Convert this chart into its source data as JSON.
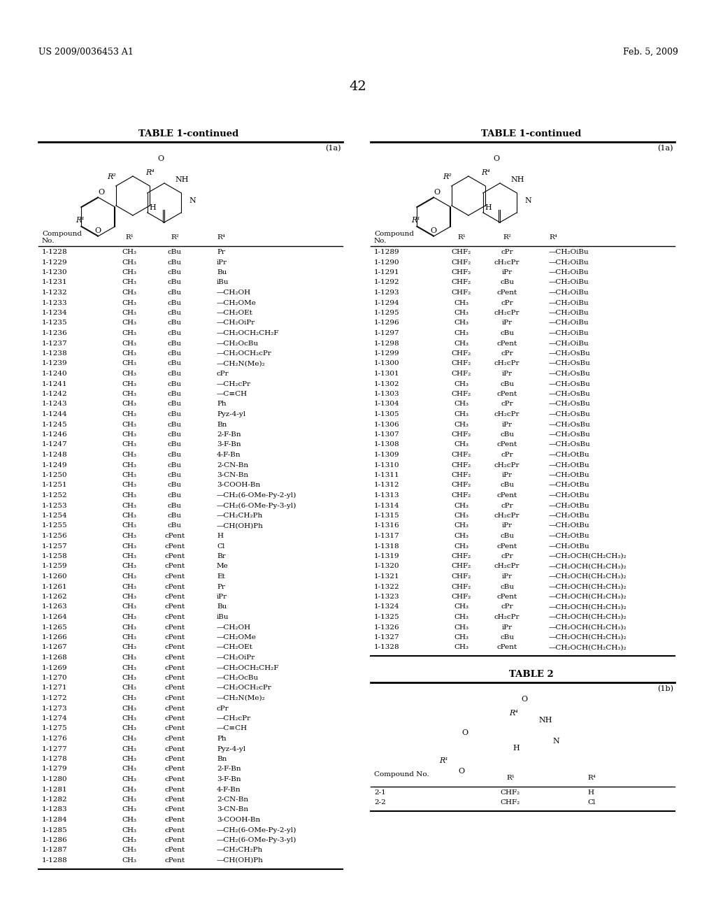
{
  "header_left": "US 2009/0036453 A1",
  "header_right": "Feb. 5, 2009",
  "page_number": "42",
  "table_title": "TABLE 1-continued",
  "table_label": "(1a)",
  "table2_title": "TABLE 2",
  "table2_label": "(1b)",
  "left_table_headers": [
    "Compound\nNo.",
    "R¹",
    "R²",
    "R⁴"
  ],
  "left_table_data": [
    [
      "1-1228",
      "CH₃",
      "cBu",
      "Pr"
    ],
    [
      "1-1229",
      "CH₃",
      "cBu",
      "iPr"
    ],
    [
      "1-1230",
      "CH₃",
      "cBu",
      "Bu"
    ],
    [
      "1-1231",
      "CH₃",
      "cBu",
      "iBu"
    ],
    [
      "1-1232",
      "CH₃",
      "cBu",
      "—CH₂OH"
    ],
    [
      "1-1233",
      "CH₃",
      "cBu",
      "—CH₂OMe"
    ],
    [
      "1-1234",
      "CH₃",
      "cBu",
      "—CH₂OEt"
    ],
    [
      "1-1235",
      "CH₃",
      "cBu",
      "—CH₂OiPr"
    ],
    [
      "1-1236",
      "CH₃",
      "cBu",
      "—CH₂OCH₂CH₂F"
    ],
    [
      "1-1237",
      "CH₃",
      "cBu",
      "—CH₂OcBu"
    ],
    [
      "1-1238",
      "CH₃",
      "cBu",
      "—CH₂OCH₂cPr"
    ],
    [
      "1-1239",
      "CH₃",
      "cBu",
      "—CH₂N(Me)₂"
    ],
    [
      "1-1240",
      "CH₃",
      "cBu",
      "cPr"
    ],
    [
      "1-1241",
      "CH₃",
      "cBu",
      "—CH₂cPr"
    ],
    [
      "1-1242",
      "CH₃",
      "cBu",
      "—C≡CH"
    ],
    [
      "1-1243",
      "CH₃",
      "cBu",
      "Ph"
    ],
    [
      "1-1244",
      "CH₃",
      "cBu",
      "Pyz-4-yl"
    ],
    [
      "1-1245",
      "CH₃",
      "cBu",
      "Bn"
    ],
    [
      "1-1246",
      "CH₃",
      "cBu",
      "2-F-Bn"
    ],
    [
      "1-1247",
      "CH₃",
      "cBu",
      "3-F-Bn"
    ],
    [
      "1-1248",
      "CH₃",
      "cBu",
      "4-F-Bn"
    ],
    [
      "1-1249",
      "CH₃",
      "cBu",
      "2-CN-Bn"
    ],
    [
      "1-1250",
      "CH₃",
      "cBu",
      "3-CN-Bn"
    ],
    [
      "1-1251",
      "CH₃",
      "cBu",
      "3-COOH-Bn"
    ],
    [
      "1-1252",
      "CH₃",
      "cBu",
      "—CH₂(6-OMe-Py-2-yl)"
    ],
    [
      "1-1253",
      "CH₃",
      "cBu",
      "—CH₂(6-OMe-Py-3-yl)"
    ],
    [
      "1-1254",
      "CH₃",
      "cBu",
      "—CH₂CH₂Ph"
    ],
    [
      "1-1255",
      "CH₃",
      "cBu",
      "—CH(OH)Ph"
    ],
    [
      "1-1256",
      "CH₃",
      "cPent",
      "H"
    ],
    [
      "1-1257",
      "CH₃",
      "cPent",
      "Cl"
    ],
    [
      "1-1258",
      "CH₃",
      "cPent",
      "Br"
    ],
    [
      "1-1259",
      "CH₃",
      "cPent",
      "Me"
    ],
    [
      "1-1260",
      "CH₃",
      "cPent",
      "Et"
    ],
    [
      "1-1261",
      "CH₃",
      "cPent",
      "Pr"
    ],
    [
      "1-1262",
      "CH₃",
      "cPent",
      "iPr"
    ],
    [
      "1-1263",
      "CH₃",
      "cPent",
      "Bu"
    ],
    [
      "1-1264",
      "CH₃",
      "cPent",
      "iBu"
    ],
    [
      "1-1265",
      "CH₃",
      "cPent",
      "—CH₂OH"
    ],
    [
      "1-1266",
      "CH₃",
      "cPent",
      "—CH₂OMe"
    ],
    [
      "1-1267",
      "CH₃",
      "cPent",
      "—CH₂OEt"
    ],
    [
      "1-1268",
      "CH₃",
      "cPent",
      "—CH₂OiPr"
    ],
    [
      "1-1269",
      "CH₃",
      "cPent",
      "—CH₂OCH₂CH₂F"
    ],
    [
      "1-1270",
      "CH₃",
      "cPent",
      "—CH₂OcBu"
    ],
    [
      "1-1271",
      "CH₃",
      "cPent",
      "—CH₂OCH₂cPr"
    ],
    [
      "1-1272",
      "CH₃",
      "cPent",
      "—CH₂N(Me)₂"
    ],
    [
      "1-1273",
      "CH₃",
      "cPent",
      "cPr"
    ],
    [
      "1-1274",
      "CH₃",
      "cPent",
      "—CH₂cPr"
    ],
    [
      "1-1275",
      "CH₃",
      "cPent",
      "—C≡CH"
    ],
    [
      "1-1276",
      "CH₃",
      "cPent",
      "Ph"
    ],
    [
      "1-1277",
      "CH₃",
      "cPent",
      "Pyz-4-yl"
    ],
    [
      "1-1278",
      "CH₃",
      "cPent",
      "Bn"
    ],
    [
      "1-1279",
      "CH₃",
      "cPent",
      "2-F-Bn"
    ],
    [
      "1-1280",
      "CH₃",
      "cPent",
      "3-F-Bn"
    ],
    [
      "1-1281",
      "CH₃",
      "cPent",
      "4-F-Bn"
    ],
    [
      "1-1282",
      "CH₃",
      "cPent",
      "2-CN-Bn"
    ],
    [
      "1-1283",
      "CH₃",
      "cPent",
      "3-CN-Bn"
    ],
    [
      "1-1284",
      "CH₃",
      "cPent",
      "3-COOH-Bn"
    ],
    [
      "1-1285",
      "CH₃",
      "cPent",
      "—CH₂(6-OMe-Py-2-yl)"
    ],
    [
      "1-1286",
      "CH₃",
      "cPent",
      "—CH₂(6-OMe-Py-3-yl)"
    ],
    [
      "1-1287",
      "CH₃",
      "cPent",
      "—CH₂CH₂Ph"
    ],
    [
      "1-1288",
      "CH₃",
      "cPent",
      "—CH(OH)Ph"
    ]
  ],
  "right_table_headers": [
    "Compound\nNo.",
    "R¹",
    "R²",
    "R⁴"
  ],
  "right_table_data": [
    [
      "1-1289",
      "CHF₂",
      "cPr",
      "—CH₂OiBu"
    ],
    [
      "1-1290",
      "CHF₂",
      "cH₂cPr",
      "—CH₂OiBu"
    ],
    [
      "1-1291",
      "CHF₂",
      "iPr",
      "—CH₂OiBu"
    ],
    [
      "1-1292",
      "CHF₂",
      "cBu",
      "—CH₂OiBu"
    ],
    [
      "1-1293",
      "CHF₂",
      "cPent",
      "—CH₂OiBu"
    ],
    [
      "1-1294",
      "CH₃",
      "cPr",
      "—CH₂OiBu"
    ],
    [
      "1-1295",
      "CH₃",
      "cH₂cPr",
      "—CH₂OiBu"
    ],
    [
      "1-1296",
      "CH₃",
      "iPr",
      "—CH₂OiBu"
    ],
    [
      "1-1297",
      "CH₃",
      "cBu",
      "—CH₂OiBu"
    ],
    [
      "1-1298",
      "CH₃",
      "cPent",
      "—CH₂OiBu"
    ],
    [
      "1-1299",
      "CHF₂",
      "cPr",
      "—CH₂OsBu"
    ],
    [
      "1-1300",
      "CHF₂",
      "cH₂cPr",
      "—CH₂OsBu"
    ],
    [
      "1-1301",
      "CHF₂",
      "iPr",
      "—CH₂OsBu"
    ],
    [
      "1-1302",
      "CH₃",
      "cBu",
      "—CH₂OsBu"
    ],
    [
      "1-1303",
      "CHF₂",
      "cPent",
      "—CH₂OsBu"
    ],
    [
      "1-1304",
      "CH₃",
      "cPr",
      "—CH₂OsBu"
    ],
    [
      "1-1305",
      "CH₃",
      "cH₂cPr",
      "—CH₂OsBu"
    ],
    [
      "1-1306",
      "CH₃",
      "iPr",
      "—CH₂OsBu"
    ],
    [
      "1-1307",
      "CHF₂",
      "cBu",
      "—CH₂OsBu"
    ],
    [
      "1-1308",
      "CH₃",
      "cPent",
      "—CH₂OsBu"
    ],
    [
      "1-1309",
      "CHF₂",
      "cPr",
      "—CH₂OtBu"
    ],
    [
      "1-1310",
      "CHF₂",
      "cH₂cPr",
      "—CH₂OtBu"
    ],
    [
      "1-1311",
      "CHF₂",
      "iPr",
      "—CH₂OtBu"
    ],
    [
      "1-1312",
      "CHF₂",
      "cBu",
      "—CH₂OtBu"
    ],
    [
      "1-1313",
      "CHF₂",
      "cPent",
      "—CH₂OtBu"
    ],
    [
      "1-1314",
      "CH₃",
      "cPr",
      "—CH₂OtBu"
    ],
    [
      "1-1315",
      "CH₃",
      "cH₂cPr",
      "—CH₂OtBu"
    ],
    [
      "1-1316",
      "CH₃",
      "iPr",
      "—CH₂OtBu"
    ],
    [
      "1-1317",
      "CH₃",
      "cBu",
      "—CH₂OtBu"
    ],
    [
      "1-1318",
      "CH₃",
      "cPent",
      "—CH₂OtBu"
    ],
    [
      "1-1319",
      "CHF₂",
      "cPr",
      "—CH₂OCH(CH₂CH₃)₂"
    ],
    [
      "1-1320",
      "CHF₂",
      "cH₂cPr",
      "—CH₂OCH(CH₂CH₃)₂"
    ],
    [
      "1-1321",
      "CHF₂",
      "iPr",
      "—CH₂OCH(CH₂CH₃)₂"
    ],
    [
      "1-1322",
      "CHF₂",
      "cBu",
      "—CH₂OCH(CH₂CH₃)₂"
    ],
    [
      "1-1323",
      "CHF₂",
      "cPent",
      "—CH₂OCH(CH₂CH₃)₂"
    ],
    [
      "1-1324",
      "CH₃",
      "cPr",
      "—CH₂OCH(CH₂CH₃)₂"
    ],
    [
      "1-1325",
      "CH₃",
      "cH₂cPr",
      "—CH₂OCH(CH₂CH₃)₂"
    ],
    [
      "1-1326",
      "CH₃",
      "iPr",
      "—CH₂OCH(CH₂CH₃)₂"
    ],
    [
      "1-1327",
      "CH₃",
      "cBu",
      "—CH₂OCH(CH₂CH₃)₂"
    ],
    [
      "1-1328",
      "CH₃",
      "cPent",
      "—CH₂OCH(CH₂CH₃)₂"
    ]
  ],
  "table2_headers": [
    "Compound No.",
    "R¹",
    "R⁴"
  ],
  "table2_data": [
    [
      "2-1",
      "CHF₂",
      "H"
    ],
    [
      "2-2",
      "CHF₂",
      "Cl"
    ]
  ],
  "bg_color": "#ffffff",
  "text_color": "#000000",
  "line_color": "#000000"
}
